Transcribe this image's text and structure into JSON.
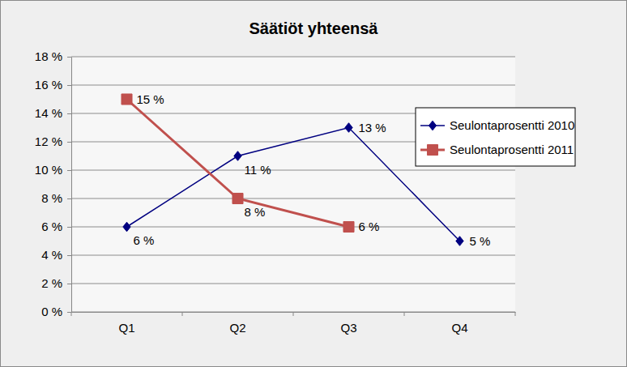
{
  "chart_data": {
    "type": "line",
    "title": "Säätiöt yhteensä",
    "categories": [
      "Q1",
      "Q2",
      "Q3",
      "Q4"
    ],
    "series": [
      {
        "name": "Seulontaprosentti 2010",
        "color": "#000080",
        "marker": "diamond",
        "line_style": "solid",
        "values": [
          6,
          11,
          13,
          5
        ],
        "value_labels": [
          "6 %",
          "11 %",
          "13 %",
          "5 %"
        ]
      },
      {
        "name": "Seulontaprosentti 2011",
        "color": "#c0504d",
        "marker": "square",
        "line_style": "solid",
        "values": [
          15,
          8,
          6,
          null
        ],
        "value_labels": [
          "15 %",
          "8 %",
          "6 %",
          null
        ]
      }
    ],
    "ylim": [
      0,
      18
    ],
    "yticks": [
      {
        "value": 0,
        "label": "0 %"
      },
      {
        "value": 2,
        "label": "2 %"
      },
      {
        "value": 4,
        "label": "4 %"
      },
      {
        "value": 6,
        "label": "6 %"
      },
      {
        "value": 8,
        "label": "8 %"
      },
      {
        "value": 10,
        "label": "10 %"
      },
      {
        "value": 12,
        "label": "12 %"
      },
      {
        "value": 14,
        "label": "14 %"
      },
      {
        "value": 16,
        "label": "16 %"
      },
      {
        "value": 18,
        "label": "18 %"
      }
    ],
    "grid": true,
    "legend": "right",
    "data_labels": true
  }
}
